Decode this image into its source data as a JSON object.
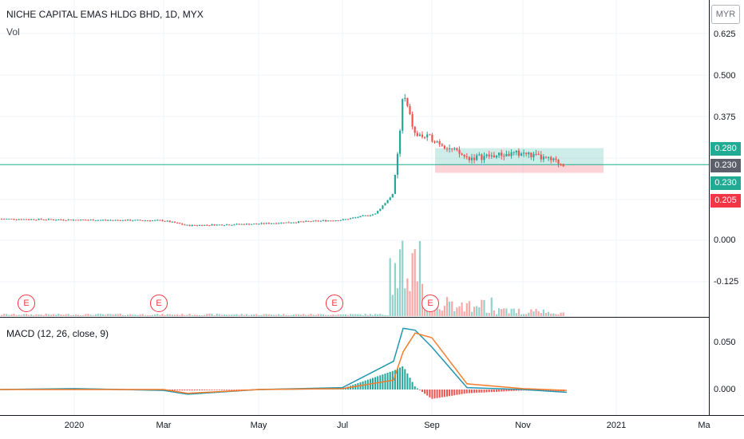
{
  "header": {
    "title": "NICHE CAPITAL EMAS HLDG BHD, 1D, MYX",
    "volume_label": "Vol",
    "currency_button": "MYR"
  },
  "price_axis": {
    "ticks": [
      "0.625",
      "0.500",
      "0.375",
      "0.000",
      "-0.125"
    ]
  },
  "badges": [
    {
      "label": "0.280",
      "color": "#22ab94"
    },
    {
      "label": "0.230",
      "color": "#5d606b"
    },
    {
      "label": "0.230",
      "color": "#22ab94"
    },
    {
      "label": "0.205",
      "color": "#f23645"
    }
  ],
  "macd_pane": {
    "label": "MACD (12, 26, close, 9)",
    "ticks": [
      "0.050",
      "0.000"
    ]
  },
  "time_axis": {
    "ticks": [
      "2020",
      "Mar",
      "May",
      "Jul",
      "Sep",
      "Nov",
      "2021",
      "Ma"
    ]
  },
  "events": [
    "E",
    "E",
    "E",
    "E"
  ],
  "colors": {
    "up": "#26a69a",
    "down": "#ef5350",
    "macd": "#2196b0",
    "signal": "#f57c2b",
    "hist_up": "#26a69a",
    "hist_down": "#ef5350"
  },
  "chart_data": [
    {
      "type": "candlestick",
      "title": "NICHE CAPITAL EMAS HLDG BHD, 1D, MYX",
      "x": [
        "2019-11",
        "2020-01",
        "2020-03",
        "2020-05",
        "2020-07",
        "2020-07-28",
        "2020-08-03",
        "2020-08-14",
        "2020-09",
        "2020-10",
        "2020-11",
        "2020-11-18"
      ],
      "close": [
        0.065,
        0.06,
        0.045,
        0.05,
        0.065,
        0.14,
        0.45,
        0.31,
        0.27,
        0.25,
        0.25,
        0.23
      ],
      "ylim": [
        -0.22,
        0.67
      ],
      "position_box": {
        "target": 0.28,
        "entry": 0.23,
        "stop": 0.205
      },
      "last_price": 0.23
    },
    {
      "type": "bar",
      "title": "Vol",
      "note": "volume bars scaled to bottom of price pane; spike in early Aug 2020"
    },
    {
      "type": "line",
      "title": "MACD (12, 26, close, 9)",
      "series": [
        {
          "name": "MACD",
          "values": [
            0.0,
            0.001,
            -0.005,
            0.0,
            0.002,
            0.03,
            0.068,
            0.045,
            0.002,
            0.0,
            0.0,
            -0.003
          ]
        },
        {
          "name": "Signal",
          "values": [
            0.0,
            0.0,
            -0.004,
            0.0,
            0.001,
            0.01,
            0.05,
            0.06,
            0.006,
            0.001,
            0.0,
            -0.001
          ]
        }
      ],
      "ylim": [
        -0.02,
        0.075
      ]
    }
  ]
}
